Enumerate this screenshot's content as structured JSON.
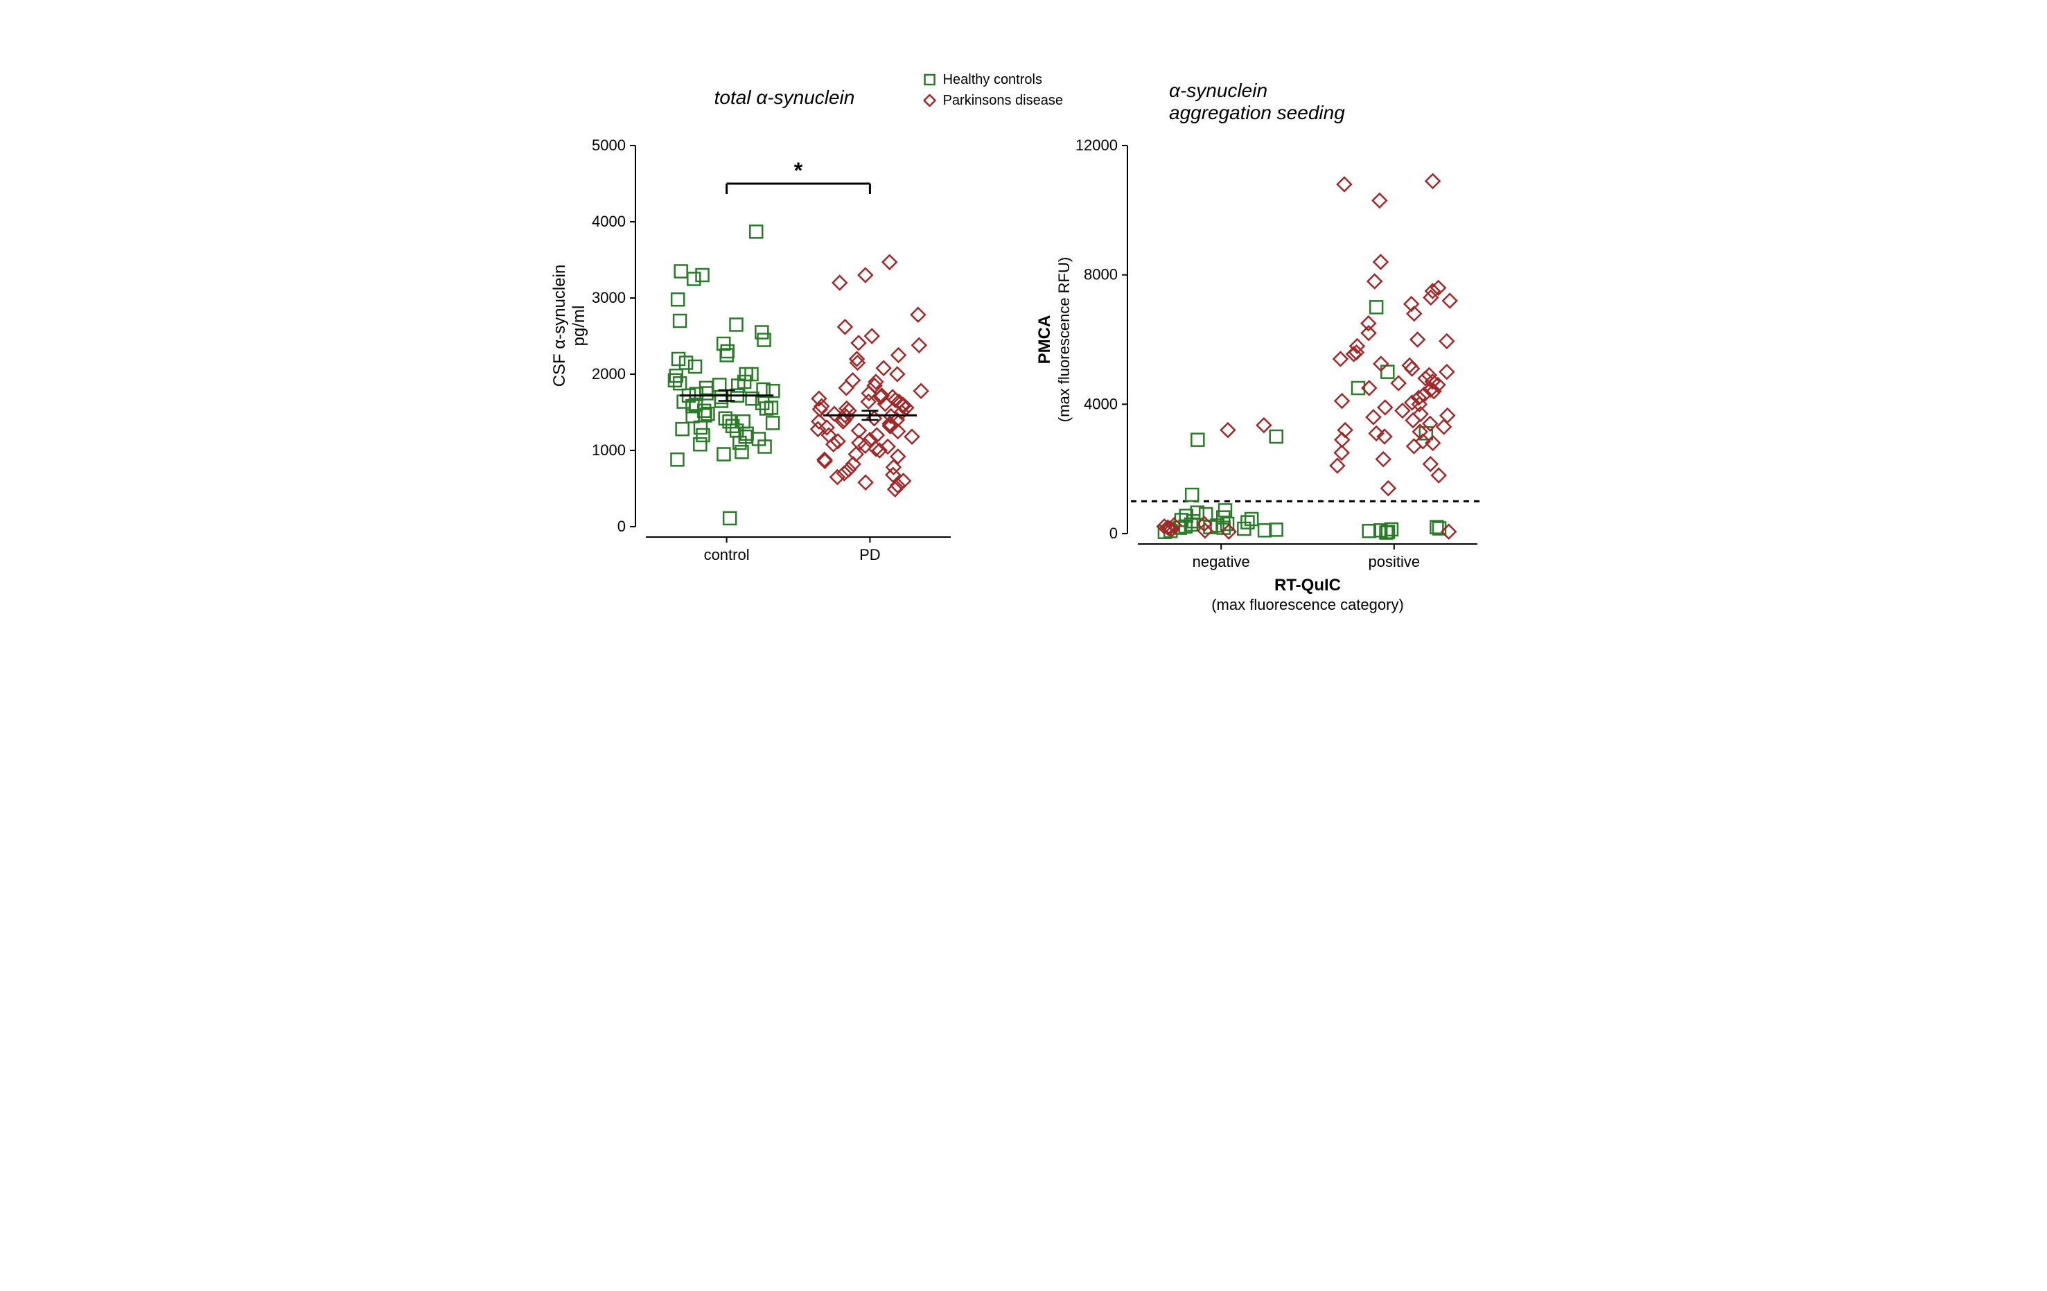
{
  "legend": {
    "items": [
      {
        "label": "Healthy controls",
        "marker": "square",
        "color": "#2a7a2a"
      },
      {
        "label": "Parkinsons disease",
        "marker": "diamond",
        "color": "#a02828"
      }
    ]
  },
  "chart_left": {
    "type": "scatter",
    "title": "total α-synuclein",
    "title_fontsize": 28,
    "title_fontstyle": "italic",
    "ylabel_line1": "CSF α-synuclein",
    "ylabel_line2": "pg/ml",
    "label_fontsize": 24,
    "ylim": [
      0,
      5000
    ],
    "ytick_step": 1000,
    "categories": [
      "control",
      "PD"
    ],
    "significance": "*",
    "sig_y": 4500,
    "mean_sem": {
      "control": {
        "mean": 1720,
        "sem": 70
      },
      "PD": {
        "mean": 1460,
        "sem": 60
      }
    },
    "background_color": "#ffffff",
    "axis_color": "#000000",
    "tick_fontsize": 22,
    "marker_size": 18,
    "line_width": 2,
    "data_control": [
      1720,
      1650,
      1800,
      1900,
      1450,
      1380,
      1200,
      1100,
      1050,
      950,
      1300,
      1550,
      1680,
      1750,
      2100,
      2250,
      2000,
      1850,
      1920,
      2400,
      2550,
      2700,
      2650,
      2980,
      3300,
      3350,
      3250,
      3870,
      110,
      880,
      1580,
      1620,
      1420,
      1150,
      1480,
      1700,
      2200,
      1880,
      1320,
      1260,
      1080,
      980,
      1740,
      1820,
      2000,
      2450,
      2300,
      1600,
      1520,
      1460,
      1280,
      1380,
      1180,
      1220,
      1560,
      1640,
      1780,
      1860,
      1360,
      1720,
      2150,
      1980
    ],
    "data_pd": [
      1460,
      1500,
      1420,
      1350,
      1280,
      1600,
      1680,
      1200,
      1100,
      1050,
      950,
      880,
      820,
      780,
      700,
      650,
      580,
      540,
      1750,
      1820,
      1900,
      2000,
      2150,
      2250,
      2380,
      2500,
      2620,
      2780,
      3200,
      3300,
      3470,
      2410,
      1520,
      1380,
      1320,
      1260,
      1180,
      1120,
      1580,
      1640,
      1700,
      1450,
      1400,
      1550,
      1000,
      920,
      1060,
      1480,
      1540,
      1610,
      1780,
      1850,
      750,
      680,
      600,
      1140,
      1320,
      1400,
      1660,
      1720,
      1250,
      1080,
      490,
      1300,
      1440,
      2080,
      2200,
      1920,
      1560,
      860,
      1640,
      1580,
      1200,
      1020,
      1700,
      1380
    ],
    "colors": {
      "control": "#2a7a2a",
      "pd": "#a02828"
    }
  },
  "chart_right": {
    "type": "scatter",
    "title_line1": "α-synuclein",
    "title_line2": "aggregation seeding",
    "title_fontsize": 28,
    "title_fontstyle": "italic",
    "ylabel_line1": "PMCA",
    "ylabel_line2": "(max fluorescence RFU)",
    "xlabel_line1": "RT-QuIC",
    "xlabel_line2": "(max fluorescence category)",
    "label_fontsize": 24,
    "ylim": [
      0,
      12000
    ],
    "ytick_step": 4000,
    "categories": [
      "negative",
      "positive"
    ],
    "threshold_line": 1000,
    "background_color": "#ffffff",
    "axis_color": "#000000",
    "tick_fontsize": 22,
    "marker_size": 18,
    "line_width": 2,
    "data_negative_control": [
      50,
      80,
      120,
      150,
      180,
      200,
      250,
      280,
      300,
      350,
      380,
      420,
      450,
      500,
      550,
      600,
      650,
      720,
      2900,
      3000,
      1200,
      100,
      220,
      180
    ],
    "data_negative_pd": [
      60,
      90,
      130,
      160,
      190,
      220,
      260,
      300,
      3200,
      3350
    ],
    "data_positive_control": [
      30,
      50,
      80,
      100,
      130,
      160,
      200,
      7000,
      5000,
      3100,
      4500
    ],
    "data_positive_pd": [
      2700,
      2800,
      2850,
      2900,
      3000,
      3100,
      3200,
      3300,
      3400,
      3500,
      3600,
      3700,
      3800,
      3900,
      4000,
      4100,
      4200,
      4300,
      4400,
      4500,
      4600,
      4700,
      4800,
      4900,
      5000,
      5100,
      5200,
      5400,
      5600,
      5800,
      6000,
      6200,
      6500,
      6800,
      7100,
      7200,
      7300,
      7500,
      7600,
      7800,
      8400,
      10300,
      10800,
      10900,
      2100,
      2300,
      2500,
      1400,
      1800,
      60,
      4050,
      4450,
      4650,
      5250,
      5550,
      5950,
      3150,
      3650,
      2150
    ],
    "colors": {
      "control": "#2a7a2a",
      "pd": "#a02828"
    }
  }
}
